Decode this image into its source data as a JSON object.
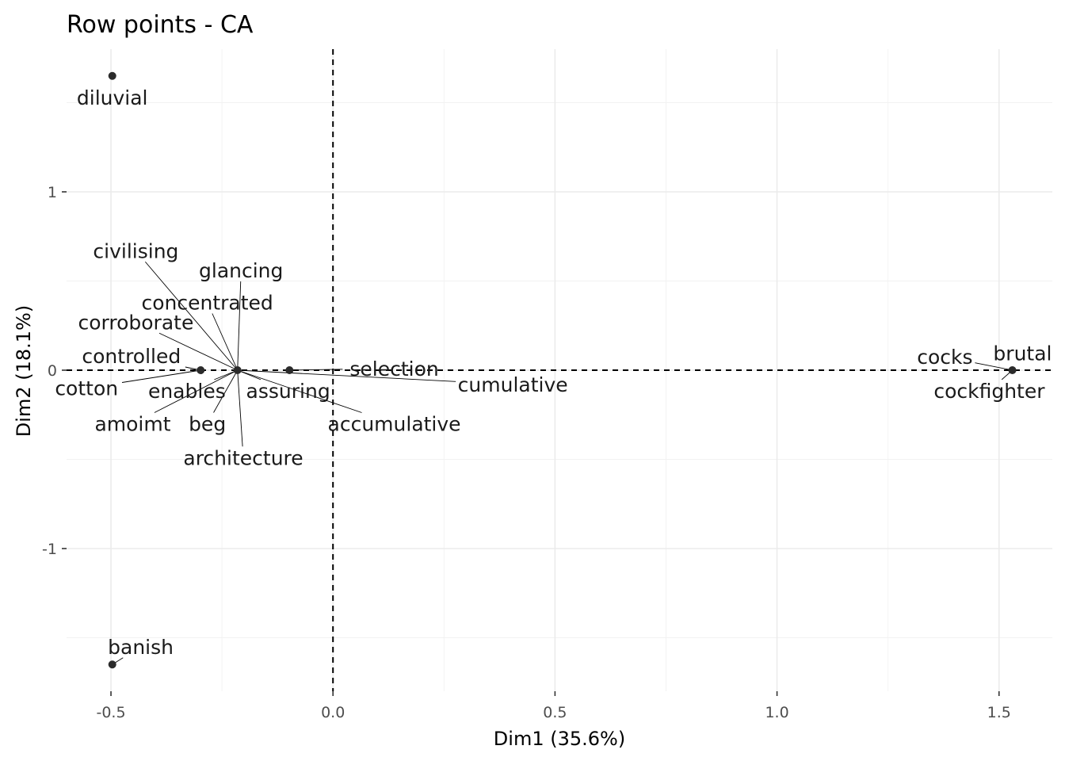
{
  "chart_data": {
    "type": "scatter",
    "title": "Row points - CA",
    "xlabel": "Dim1 (35.6%)",
    "ylabel": "Dim2 (18.1%)",
    "xlim": [
      -0.6,
      1.62
    ],
    "ylim": [
      -1.8,
      1.8
    ],
    "xticks": [
      -0.5,
      0.0,
      0.5,
      1.0,
      1.5
    ],
    "xtick_labels": [
      "-0.5",
      "0.0",
      "0.5",
      "1.0",
      "1.5"
    ],
    "yticks": [
      -1,
      0,
      1
    ],
    "ytick_labels": [
      "-1",
      "0",
      "1"
    ],
    "grid": true,
    "reference_lines": {
      "x": 0,
      "y": 0,
      "style": "dashed"
    },
    "points": [
      {
        "label": "diluvial",
        "x": -0.497,
        "y": 1.65,
        "lx": -0.497,
        "ly": 1.53
      },
      {
        "label": "banish",
        "x": -0.497,
        "y": -1.65,
        "lx": -0.433,
        "ly": -1.55
      },
      {
        "label": "cotton",
        "x": -0.298,
        "y": 0.0,
        "lx": -0.555,
        "ly": -0.1
      },
      {
        "label": "controlled",
        "x": -0.298,
        "y": 0.0,
        "lx": -0.454,
        "ly": 0.08
      },
      {
        "label": "selection",
        "x": -0.098,
        "y": 0.0,
        "lx": 0.138,
        "ly": 0.01
      },
      {
        "label": "civilising",
        "x": -0.215,
        "y": 0.0,
        "lx": -0.444,
        "ly": 0.67
      },
      {
        "label": "glancing",
        "x": -0.215,
        "y": 0.0,
        "lx": -0.207,
        "ly": 0.56
      },
      {
        "label": "concentrated",
        "x": -0.215,
        "y": 0.0,
        "lx": -0.283,
        "ly": 0.38
      },
      {
        "label": "corroborate",
        "x": -0.215,
        "y": 0.0,
        "lx": -0.444,
        "ly": 0.27
      },
      {
        "label": "enables",
        "x": -0.215,
        "y": 0.0,
        "lx": -0.329,
        "ly": -0.115
      },
      {
        "label": "assuring",
        "x": -0.215,
        "y": 0.0,
        "lx": -0.101,
        "ly": -0.115
      },
      {
        "label": "cumulative",
        "x": -0.215,
        "y": 0.0,
        "lx": 0.405,
        "ly": -0.08
      },
      {
        "label": "amoimt",
        "x": -0.215,
        "y": 0.0,
        "lx": -0.451,
        "ly": -0.3
      },
      {
        "label": "beg",
        "x": -0.215,
        "y": 0.0,
        "lx": -0.283,
        "ly": -0.3
      },
      {
        "label": "accumulative",
        "x": -0.215,
        "y": 0.0,
        "lx": 0.138,
        "ly": -0.3
      },
      {
        "label": "architecture",
        "x": -0.215,
        "y": 0.0,
        "lx": -0.202,
        "ly": -0.49
      },
      {
        "label": "brutal",
        "x": 1.53,
        "y": 0.0,
        "lx": 1.553,
        "ly": 0.095
      },
      {
        "label": "cocks",
        "x": 1.53,
        "y": 0.0,
        "lx": 1.378,
        "ly": 0.075
      },
      {
        "label": "cockfighter",
        "x": 1.53,
        "y": 0.0,
        "lx": 1.478,
        "ly": -0.115
      }
    ]
  }
}
